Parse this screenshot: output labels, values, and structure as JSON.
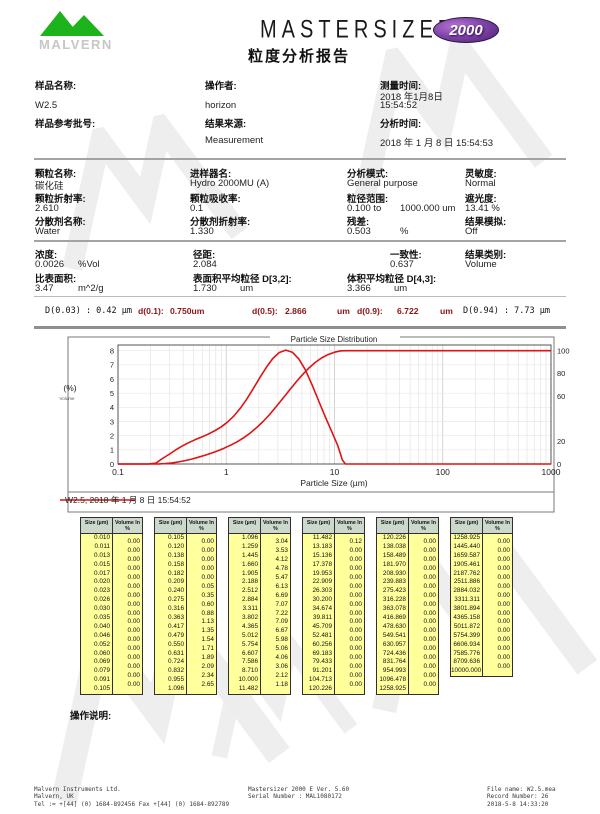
{
  "header": {
    "logo_text": "MALVERN",
    "product": "MASTERSIZER",
    "badge": "2000",
    "report_title": "粒度分析报告"
  },
  "info": {
    "sample_name_label": "样品名称:",
    "sample_name": "W2.5",
    "operator_label": "操作者:",
    "operator": "horizon",
    "measured_label": "测量时间:",
    "measured_line1": "2018 年1月8日",
    "measured_line2": "15:54:52",
    "sample_ref_label": "样品参考批号:",
    "sample_ref": "",
    "result_source_label": "结果来源:",
    "result_source": "Measurement",
    "analysed_label": "分析时间:",
    "analysed": "2018 年 1 月 8 日 15:54:53"
  },
  "particle": {
    "name_label": "颗粒名称:",
    "name": "碳化硅",
    "ri_label": "颗粒折射率:",
    "ri": "2.610",
    "dispersant_label": "分散剂名称:",
    "dispersant": "Water",
    "accessory_label": "进样器名:",
    "accessory": "Hydro 2000MU (A)",
    "absorption_label": "颗粒吸收率:",
    "absorption": "0.1",
    "dispersant_ri_label": "分散剂折射率:",
    "dispersant_ri": "1.330",
    "analysis_model_label": "分析模式:",
    "analysis_model": "General purpose",
    "size_range_label": "粒径范围:",
    "size_range_from": "0.100 to",
    "size_range_to": "1000.000  um",
    "residual_label": "残差:",
    "residual": "0.503",
    "residual_unit": "%",
    "sensitivity_label": "灵敏度:",
    "sensitivity": "Normal",
    "obscuration_label": "遮光度:",
    "obscuration": "13.41  %",
    "emulation_label": "结果模拟:",
    "emulation": "Off"
  },
  "results": {
    "concentration_label": "浓度:",
    "concentration": "0.0026",
    "concentration_unit": "%Vol",
    "span_label": "径距:",
    "span": "2.084",
    "uniformity_label": "一致性:",
    "uniformity": "0.637",
    "result_units_label": "结果类别:",
    "result_units": "Volume",
    "ssa_label": "比表面积:",
    "ssa": "3.47",
    "ssa_unit": "m^2/g",
    "d32_label": "表面积平均粒径 D[3,2]:",
    "d32": "1.730",
    "d32_unit": "um",
    "d43_label": "体积平均粒径 D[4,3]:",
    "d43": "3.366",
    "d43_unit": "um"
  },
  "dvalues": {
    "d003": "D(0.03) : 0.42 µm",
    "d01_label": "d(0.1):",
    "d01": "0.750um",
    "d05_label": "d(0.5):",
    "d05": "2.866",
    "d05_unit": "um",
    "d09_label": "d(0.9):",
    "d09": "6.722",
    "d09_unit": "um",
    "d094": "D(0.94) : 7.73 µm"
  },
  "chart_data": {
    "type": "line",
    "title": "Particle Size Distribution",
    "xlabel": "Particle Size (µm)",
    "ylabel_left": "(%)",
    "ylabel_left_sub": "Volume",
    "x_scale": "log",
    "xlim": [
      0.1,
      1000
    ],
    "x_ticks": [
      0.1,
      1,
      10,
      100,
      1000
    ],
    "x_tick_labels": [
      "0.1",
      "1",
      "10",
      "100",
      "1000"
    ],
    "ylim_left": [
      0,
      8.4
    ],
    "y_ticks_left": [
      0,
      1,
      2,
      3,
      4,
      5,
      6,
      7,
      8
    ],
    "ylim_right": [
      0,
      105
    ],
    "y_ticks_right": [
      0,
      20,
      60,
      80,
      100
    ],
    "grid": true,
    "legend": "W2.5, 2018 年 1 月 8 日 15:54:52",
    "legend_position": "bottom-left",
    "line_color": "#e01212",
    "series": [
      {
        "name": "frequency",
        "axis": "left",
        "x": [
          0.1,
          0.19,
          0.224,
          0.257,
          0.295,
          0.339,
          0.389,
          0.447,
          0.513,
          0.589,
          0.676,
          0.776,
          0.891,
          1.024,
          1.175,
          1.349,
          1.549,
          1.778,
          2.042,
          2.344,
          2.692,
          3.09,
          3.548,
          4.073,
          4.677,
          5.37,
          6.166,
          7.079,
          8.128,
          9.333,
          10.715,
          11.8,
          12.6,
          1000
        ],
        "y": [
          0,
          0,
          0.06,
          0.39,
          0.67,
          0.98,
          1.26,
          1.5,
          1.71,
          1.9,
          2.1,
          2.33,
          2.6,
          2.95,
          3.38,
          3.93,
          4.58,
          5.32,
          6.09,
          6.82,
          7.45,
          7.87,
          8.04,
          7.89,
          7.42,
          6.66,
          5.63,
          4.52,
          3.41,
          2.36,
          1.31,
          0.3,
          0,
          0
        ]
      },
      {
        "name": "cumulative",
        "axis": "right",
        "x": [
          0.1,
          0.209,
          0.24,
          0.275,
          0.316,
          0.363,
          0.417,
          0.479,
          0.55,
          0.631,
          0.724,
          0.832,
          0.955,
          1.096,
          1.259,
          1.445,
          1.66,
          1.905,
          2.188,
          2.512,
          2.884,
          3.311,
          3.802,
          4.365,
          5.012,
          5.754,
          6.607,
          7.586,
          8.71,
          10.0,
          11.482,
          13.183,
          1000
        ],
        "y": [
          0,
          0,
          0.05,
          0.4,
          1.0,
          1.88,
          3.01,
          4.36,
          5.9,
          7.61,
          9.5,
          11.59,
          13.93,
          16.58,
          19.62,
          23.15,
          27.27,
          32.05,
          37.52,
          43.65,
          50.34,
          57.41,
          64.63,
          71.72,
          78.39,
          84.37,
          89.43,
          93.49,
          96.55,
          98.67,
          99.85,
          99.97,
          100
        ]
      }
    ]
  },
  "table": {
    "header_size": "Size (µm)",
    "header_volume": "Volume In %",
    "columns": [
      {
        "sizes": [
          "0.010",
          "0.011",
          "0.013",
          "0.015",
          "0.017",
          "0.020",
          "0.023",
          "0.026",
          "0.030",
          "0.035",
          "0.040",
          "0.046",
          "0.052",
          "0.060",
          "0.069",
          "0.079",
          "0.091",
          "0.105"
        ],
        "volumes": [
          "0.00",
          "0.00",
          "0.00",
          "0.00",
          "0.00",
          "0.00",
          "0.00",
          "0.00",
          "0.00",
          "0.00",
          "0.00",
          "0.00",
          "0.00",
          "0.00",
          "0.00",
          "0.00",
          "0.00"
        ]
      },
      {
        "sizes": [
          "0.105",
          "0.120",
          "0.138",
          "0.158",
          "0.182",
          "0.209",
          "0.240",
          "0.275",
          "0.316",
          "0.363",
          "0.417",
          "0.479",
          "0.550",
          "0.631",
          "0.724",
          "0.832",
          "0.955",
          "1.096"
        ],
        "volumes": [
          "0.00",
          "0.00",
          "0.00",
          "0.00",
          "0.00",
          "0.05",
          "0.35",
          "0.60",
          "0.88",
          "1.13",
          "1.35",
          "1.54",
          "1.71",
          "1.89",
          "2.09",
          "2.34",
          "2.65"
        ]
      },
      {
        "sizes": [
          "1.096",
          "1.259",
          "1.445",
          "1.660",
          "1.905",
          "2.188",
          "2.512",
          "2.884",
          "3.311",
          "3.802",
          "4.365",
          "5.012",
          "5.754",
          "6.607",
          "7.586",
          "8.710",
          "10.000",
          "11.482"
        ],
        "volumes": [
          "3.04",
          "3.53",
          "4.12",
          "4.78",
          "5.47",
          "6.13",
          "6.69",
          "7.07",
          "7.22",
          "7.09",
          "6.67",
          "5.98",
          "5.06",
          "4.06",
          "3.06",
          "2.12",
          "1.18"
        ]
      },
      {
        "sizes": [
          "11.482",
          "13.183",
          "15.136",
          "17.378",
          "19.953",
          "22.909",
          "26.303",
          "30.200",
          "34.674",
          "39.811",
          "45.709",
          "52.481",
          "60.256",
          "69.183",
          "79.433",
          "91.201",
          "104.713",
          "120.226"
        ],
        "volumes": [
          "0.12",
          "0.00",
          "0.00",
          "0.00",
          "0.00",
          "0.00",
          "0.00",
          "0.00",
          "0.00",
          "0.00",
          "0.00",
          "0.00",
          "0.00",
          "0.00",
          "0.00",
          "0.00",
          "0.00"
        ]
      },
      {
        "sizes": [
          "120.226",
          "138.038",
          "158.489",
          "181.970",
          "208.930",
          "239.883",
          "275.423",
          "316.228",
          "363.078",
          "416.869",
          "478.630",
          "549.541",
          "630.957",
          "724.436",
          "831.764",
          "954.993",
          "1096.478",
          "1258.925"
        ],
        "volumes": [
          "0.00",
          "0.00",
          "0.00",
          "0.00",
          "0.00",
          "0.00",
          "0.00",
          "0.00",
          "0.00",
          "0.00",
          "0.00",
          "0.00",
          "0.00",
          "0.00",
          "0.00",
          "0.00",
          "0.00"
        ]
      },
      {
        "sizes": [
          "1258.925",
          "1445.440",
          "1659.587",
          "1905.461",
          "2187.762",
          "2511.886",
          "2884.032",
          "3311.311",
          "3801.894",
          "4365.158",
          "5011.872",
          "5754.399",
          "6606.934",
          "7585.776",
          "8709.636",
          "10000.000"
        ],
        "volumes": [
          "0.00",
          "0.00",
          "0.00",
          "0.00",
          "0.00",
          "0.00",
          "0.00",
          "0.00",
          "0.00",
          "0.00",
          "0.00",
          "0.00",
          "0.00",
          "0.00",
          "0.00"
        ]
      }
    ]
  },
  "notes_label": "操作说明:",
  "footer": {
    "company_line1": "Malvern Instruments Ltd.",
    "company_line2": "Malvern, UK",
    "company_line3": "Tel := +[44] (0) 1684-892456 Fax +[44] (0) 1684-892789",
    "software_line1": "Mastersizer 2000 E Ver. 5.60",
    "software_line2": "Serial Number : MAL1080172",
    "file_line1": "File name: W2.5.mea",
    "file_line2": "Record Number: 26",
    "file_line3": "2018-5-8 14:33:20"
  }
}
